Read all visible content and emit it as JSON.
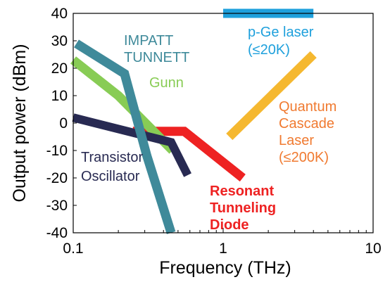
{
  "chart_data": {
    "type": "line",
    "xlabel": "Frequency (THz)",
    "ylabel": "Output power (dBm)",
    "x_scale": "log",
    "xlim": [
      0.1,
      10
    ],
    "ylim": [
      -40,
      40
    ],
    "x_ticks": [
      {
        "value": 0.1,
        "label": "0.1"
      },
      {
        "value": 1,
        "label": "1"
      },
      {
        "value": 10,
        "label": "10"
      }
    ],
    "y_ticks": [
      {
        "value": 40,
        "label": "40"
      },
      {
        "value": 30,
        "label": "30"
      },
      {
        "value": 20,
        "label": "20"
      },
      {
        "value": 10,
        "label": "10"
      },
      {
        "value": 0,
        "label": "0"
      },
      {
        "value": -10,
        "label": "-10"
      },
      {
        "value": -20,
        "label": "-20"
      },
      {
        "value": -30,
        "label": "-30"
      },
      {
        "value": -40,
        "label": "-40"
      }
    ],
    "grid": false,
    "series": [
      {
        "key": "impatt",
        "color": "#3f8a9a",
        "points": [
          [
            0.105,
            29
          ],
          [
            0.22,
            18
          ],
          [
            0.31,
            -12
          ],
          [
            0.45,
            -40
          ]
        ]
      },
      {
        "key": "gunn",
        "color": "#88cc55",
        "points": [
          [
            0.1,
            23
          ],
          [
            0.2,
            10
          ],
          [
            0.46,
            -10
          ]
        ]
      },
      {
        "key": "rtd",
        "color": "#ee2222",
        "points": [
          [
            0.25,
            -3
          ],
          [
            0.55,
            -3
          ],
          [
            1.35,
            -20
          ]
        ]
      },
      {
        "key": "transistor",
        "color": "#282a52",
        "points": [
          [
            0.1,
            2
          ],
          [
            0.45,
            -7
          ],
          [
            0.58,
            -19
          ]
        ]
      },
      {
        "key": "qcl",
        "color": "#f5b830",
        "points": [
          [
            1.1,
            -5
          ],
          [
            4.0,
            25
          ]
        ]
      },
      {
        "key": "pge",
        "color": "#1ea0dc",
        "points": [
          [
            1.0,
            40
          ],
          [
            4.0,
            40
          ]
        ]
      }
    ],
    "labels": [
      {
        "key": "impatt1",
        "text": "IMPATT",
        "color": "#3f8a9a",
        "bold": false
      },
      {
        "key": "impatt2",
        "text": "TUNNETT",
        "color": "#3f8a9a",
        "bold": false
      },
      {
        "key": "gunn",
        "text": "Gunn",
        "color": "#88cc55",
        "bold": false
      },
      {
        "key": "pge1",
        "text": "p-Ge laser",
        "color": "#1ea0dc",
        "bold": false
      },
      {
        "key": "pge2",
        "text": "(≤20K)",
        "color": "#1ea0dc",
        "bold": false
      },
      {
        "key": "qcl1",
        "text": "Quantum",
        "color": "#f07a30",
        "bold": false
      },
      {
        "key": "qcl2",
        "text": "Cascade",
        "color": "#f07a30",
        "bold": false
      },
      {
        "key": "qcl3",
        "text": "Laser",
        "color": "#f07a30",
        "bold": false
      },
      {
        "key": "qcl4",
        "text": "(≤200K)",
        "color": "#f07a30",
        "bold": false
      },
      {
        "key": "tr1",
        "text": "Transistor",
        "color": "#282a52",
        "bold": false
      },
      {
        "key": "tr2",
        "text": "Oscillator",
        "color": "#282a52",
        "bold": false
      },
      {
        "key": "rtd1",
        "text": "Resonant",
        "color": "#ee2222",
        "bold": true
      },
      {
        "key": "rtd2",
        "text": "Tunneling",
        "color": "#ee2222",
        "bold": true
      },
      {
        "key": "rtd3",
        "text": "Diode",
        "color": "#ee2222",
        "bold": true
      }
    ]
  }
}
